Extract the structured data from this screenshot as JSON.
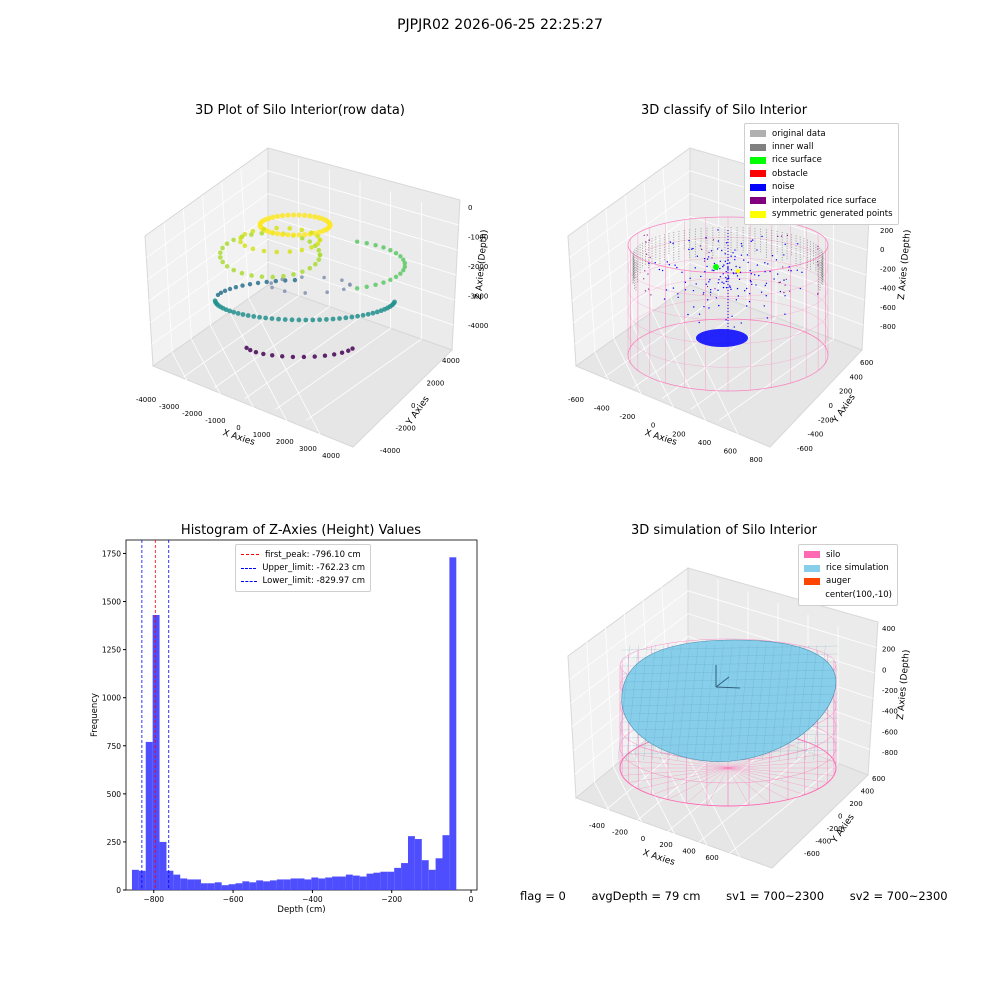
{
  "suptitle": "PJPJR02 2026-06-25 22:25:27",
  "chart_data": [
    {
      "type": "scatter",
      "title": "3D Plot of Silo Interior(row data)",
      "xlabel": "X Axies",
      "ylabel": "Y Axies",
      "zlabel": "Z Axies (Depth)",
      "x_ticks": [
        "-4000",
        "-3000",
        "-2000",
        "-1000",
        "0",
        "1000",
        "2000",
        "3000",
        "4000"
      ],
      "y_ticks": [
        "-4000",
        "-2000",
        "0",
        "2000",
        "4000"
      ],
      "z_ticks": [
        "-4000",
        "-3000",
        "-2000",
        "-1000",
        "0"
      ],
      "colormap": "viridis"
    },
    {
      "type": "scatter",
      "title": "3D classify of Silo Interior",
      "xlabel": "X Axies",
      "ylabel": "Y Axies",
      "zlabel": "Z Axies (Depth)",
      "x_ticks": [
        "-600",
        "-400",
        "-200",
        "0",
        "200",
        "400",
        "600",
        "800"
      ],
      "y_ticks": [
        "-600",
        "-400",
        "-200",
        "0",
        "200",
        "400",
        "600"
      ],
      "z_ticks": [
        "-800",
        "-600",
        "-400",
        "-200",
        "0",
        "200"
      ],
      "legend": [
        {
          "label": "original data",
          "color": "#b0b0b0"
        },
        {
          "label": "inner wall",
          "color": "#808080"
        },
        {
          "label": "rice surface",
          "color": "#00ff00"
        },
        {
          "label": "obstacle",
          "color": "#ff0000"
        },
        {
          "label": "noise",
          "color": "#0000ff"
        },
        {
          "label": "interpolated rice surface",
          "color": "#800080"
        },
        {
          "label": "symmetric generated points",
          "color": "#ffff00"
        }
      ],
      "legend_position": "top-right"
    },
    {
      "type": "bar",
      "title": "Histogram of Z-Axies (Height) Values",
      "xlabel": "Depth (cm)",
      "ylabel": "Frequency",
      "xlim": [
        -870,
        15
      ],
      "ylim": [
        0,
        1820
      ],
      "x_ticks": [
        "−800",
        "−600",
        "−400",
        "−200",
        "0"
      ],
      "y_ticks": [
        "0",
        "250",
        "500",
        "750",
        "1000",
        "1250",
        "1500",
        "1750"
      ],
      "bin_width": 17.4,
      "bin_start": -855,
      "values": [
        105,
        100,
        770,
        1430,
        250,
        100,
        80,
        60,
        55,
        55,
        35,
        35,
        40,
        25,
        30,
        35,
        45,
        40,
        50,
        45,
        50,
        55,
        55,
        60,
        60,
        55,
        65,
        60,
        65,
        70,
        70,
        80,
        75,
        70,
        85,
        90,
        95,
        95,
        115,
        140,
        280,
        265,
        155,
        105,
        165,
        285,
        1730
      ],
      "vlines": [
        {
          "label": "first_peak: -796.10 cm",
          "x": -796.1,
          "color": "#ff0000"
        },
        {
          "label": "Upper_limit: -762.23 cm",
          "x": -762.23,
          "color": "#0000ff"
        },
        {
          "label": "Lower_limit: -829.97 cm",
          "x": -829.97,
          "color": "#0000ff"
        }
      ],
      "bar_color": "#4444ff",
      "legend_position": "top-center"
    },
    {
      "type": "area",
      "title": "3D simulation of Silo Interior",
      "xlabel": "X Axies",
      "ylabel": "Y Axies",
      "zlabel": "Z Axies (Depth)",
      "x_ticks": [
        "-400",
        "-200",
        "0",
        "200",
        "400",
        "600"
      ],
      "y_ticks": [
        "-600",
        "-400",
        "-200",
        "0",
        "200",
        "400",
        "600"
      ],
      "z_ticks": [
        "-800",
        "-600",
        "-400",
        "-200",
        "0",
        "200",
        "400"
      ],
      "legend": [
        {
          "label": "silo",
          "color": "#ff69b4"
        },
        {
          "label": "rice simulation",
          "color": "#87ceeb"
        },
        {
          "label": "auger",
          "color": "#ff4500"
        },
        {
          "label": "center(100,-10)",
          "color": ""
        }
      ],
      "legend_position": "top-right"
    }
  ],
  "footer": {
    "flag": "flag = 0",
    "avg": "avgDepth = 79 cm",
    "sv1": "sv1 = 700~2300",
    "sv2": "sv2 = 700~2300"
  }
}
